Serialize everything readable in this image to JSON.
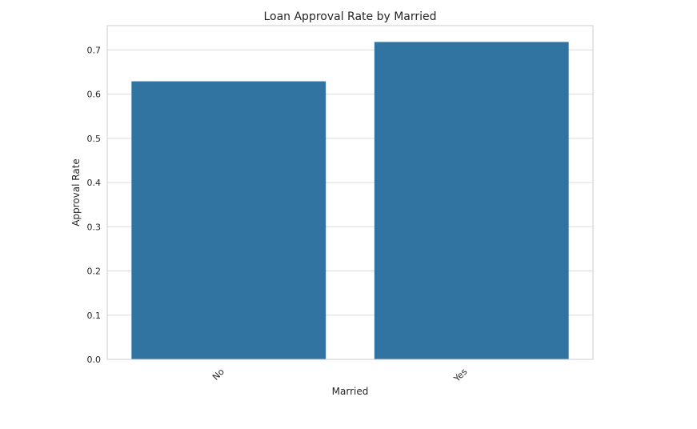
{
  "chart_data": {
    "type": "bar",
    "title": "Loan Approval Rate by Married",
    "xlabel": "Married",
    "ylabel": "Approval Rate",
    "categories": [
      "No",
      "Yes"
    ],
    "values": [
      0.629,
      0.718
    ],
    "ylim": [
      0,
      0.755
    ],
    "yticks": [
      "0.0",
      "0.1",
      "0.2",
      "0.3",
      "0.4",
      "0.5",
      "0.6",
      "0.7"
    ],
    "ytick_values": [
      0,
      0.1,
      0.2,
      0.3,
      0.4,
      0.5,
      0.6,
      0.7
    ],
    "grid": true,
    "legend": "none",
    "colors": {
      "bar": "#3274a1",
      "grid": "#dcdcdc",
      "frame": "#cccccc",
      "text": "#262626"
    }
  }
}
